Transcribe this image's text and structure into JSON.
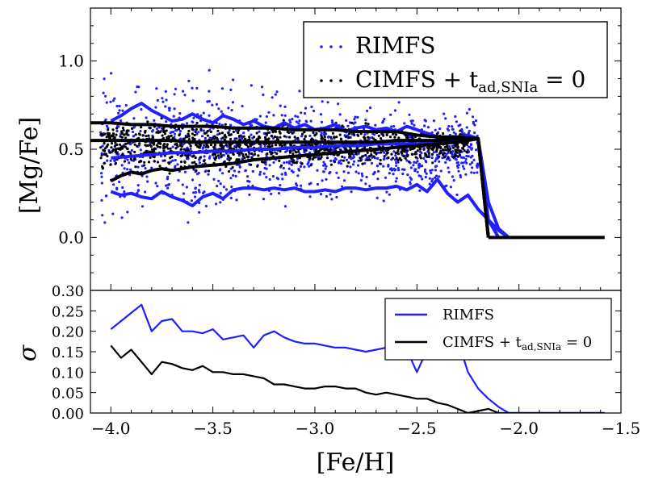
{
  "chart_data": [
    {
      "type": "scatter",
      "panel": "top",
      "ylabel": "[Mg/Fe]",
      "xlabel": "",
      "xlim": [
        -4.1,
        -1.5
      ],
      "ylim": [
        -0.3,
        1.3
      ],
      "yticks": [
        0.0,
        0.5,
        1.0
      ],
      "ytick_labels": [
        "0.0",
        "0.5",
        "1.0"
      ],
      "legend": {
        "position": "top-right",
        "entries": [
          {
            "label_main": "RIMFS",
            "label_sub": "",
            "label_tail": "",
            "color": "#1f1fff",
            "marker": "dots"
          },
          {
            "label_main": "CIMFS + t",
            "label_sub": "ad,SNIa",
            "label_tail": " = 0",
            "color": "#000000",
            "marker": "dots"
          }
        ]
      },
      "scatter_clouds": [
        {
          "name": "RIMFS",
          "color": "#1f1fff",
          "n_points": 1200,
          "x_range": [
            -4.05,
            -2.2
          ],
          "y_center": 0.5,
          "y_spread": 0.32
        },
        {
          "name": "CIMFS + t_ad,SNIa = 0",
          "color": "#000000",
          "n_points": 1100,
          "x_range": [
            -4.05,
            -2.25
          ],
          "y_center": 0.52,
          "y_spread": 0.12
        }
      ],
      "series": [
        {
          "name": "RIMFS upper",
          "color": "#1f1fff",
          "x": [
            -4.0,
            -3.95,
            -3.9,
            -3.85,
            -3.8,
            -3.75,
            -3.7,
            -3.65,
            -3.6,
            -3.55,
            -3.5,
            -3.45,
            -3.4,
            -3.35,
            -3.3,
            -3.25,
            -3.2,
            -3.15,
            -3.1,
            -3.05,
            -3.0,
            -2.95,
            -2.9,
            -2.85,
            -2.8,
            -2.75,
            -2.7,
            -2.65,
            -2.6,
            -2.55,
            -2.5,
            -2.45,
            -2.4,
            -2.35,
            -2.3,
            -2.25,
            -2.2,
            -2.15,
            -2.1,
            -2.05
          ],
          "y": [
            0.66,
            0.69,
            0.73,
            0.76,
            0.72,
            0.69,
            0.66,
            0.67,
            0.7,
            0.67,
            0.65,
            0.69,
            0.67,
            0.64,
            0.66,
            0.63,
            0.62,
            0.65,
            0.62,
            0.64,
            0.61,
            0.62,
            0.64,
            0.6,
            0.62,
            0.63,
            0.61,
            0.62,
            0.6,
            0.63,
            0.61,
            0.59,
            0.57,
            0.56,
            0.57,
            0.58,
            0.56,
            0.2,
            0.05,
            0.0
          ]
        },
        {
          "name": "RIMFS mean",
          "color": "#1f1fff",
          "x": [
            -4.0,
            -3.9,
            -3.8,
            -3.7,
            -3.6,
            -3.5,
            -3.4,
            -3.3,
            -3.2,
            -3.1,
            -3.0,
            -2.9,
            -2.8,
            -2.7,
            -2.6,
            -2.5,
            -2.4,
            -2.3,
            -2.2,
            -2.15,
            -2.1
          ],
          "y": [
            0.45,
            0.46,
            0.47,
            0.48,
            0.48,
            0.49,
            0.49,
            0.5,
            0.5,
            0.51,
            0.51,
            0.52,
            0.52,
            0.53,
            0.53,
            0.53,
            0.54,
            0.55,
            0.56,
            0.1,
            0.0
          ]
        },
        {
          "name": "RIMFS lower",
          "color": "#1f1fff",
          "x": [
            -4.0,
            -3.95,
            -3.9,
            -3.85,
            -3.8,
            -3.75,
            -3.7,
            -3.65,
            -3.6,
            -3.55,
            -3.5,
            -3.45,
            -3.4,
            -3.35,
            -3.3,
            -3.25,
            -3.2,
            -3.15,
            -3.1,
            -3.05,
            -3.0,
            -2.95,
            -2.9,
            -2.85,
            -2.8,
            -2.75,
            -2.7,
            -2.65,
            -2.6,
            -2.55,
            -2.5,
            -2.45,
            -2.4,
            -2.35,
            -2.3,
            -2.25,
            -2.2,
            -2.15,
            -2.1,
            -2.05
          ],
          "y": [
            0.26,
            0.24,
            0.25,
            0.23,
            0.22,
            0.26,
            0.23,
            0.21,
            0.18,
            0.23,
            0.25,
            0.22,
            0.27,
            0.28,
            0.28,
            0.27,
            0.28,
            0.27,
            0.28,
            0.26,
            0.26,
            0.27,
            0.26,
            0.28,
            0.28,
            0.27,
            0.28,
            0.28,
            0.29,
            0.27,
            0.3,
            0.26,
            0.33,
            0.25,
            0.2,
            0.24,
            0.16,
            0.1,
            0.04,
            0.0
          ]
        },
        {
          "name": "CIMFS upper",
          "color": "#000000",
          "x": [
            -4.1,
            -4.0,
            -3.9,
            -3.8,
            -3.7,
            -3.6,
            -3.5,
            -3.4,
            -3.3,
            -3.2,
            -3.1,
            -3.0,
            -2.9,
            -2.8,
            -2.7,
            -2.6,
            -2.5,
            -2.4,
            -2.3,
            -2.2,
            -2.15
          ],
          "y": [
            0.65,
            0.65,
            0.64,
            0.64,
            0.63,
            0.63,
            0.63,
            0.62,
            0.62,
            0.62,
            0.61,
            0.61,
            0.61,
            0.6,
            0.6,
            0.6,
            0.58,
            0.57,
            0.57,
            0.56,
            0.0
          ]
        },
        {
          "name": "CIMFS mean",
          "color": "#000000",
          "x": [
            -4.1,
            -4.0,
            -3.9,
            -3.8,
            -3.7,
            -3.6,
            -3.5,
            -3.4,
            -3.3,
            -3.2,
            -3.1,
            -3.0,
            -2.9,
            -2.8,
            -2.7,
            -2.6,
            -2.5,
            -2.4,
            -2.3,
            -2.2,
            -2.15
          ],
          "y": [
            0.55,
            0.55,
            0.55,
            0.55,
            0.55,
            0.54,
            0.54,
            0.54,
            0.54,
            0.54,
            0.54,
            0.54,
            0.54,
            0.54,
            0.54,
            0.55,
            0.55,
            0.55,
            0.56,
            0.56,
            0.0
          ]
        },
        {
          "name": "CIMFS lower",
          "color": "#000000",
          "x": [
            -4.0,
            -3.95,
            -3.9,
            -3.85,
            -3.8,
            -3.75,
            -3.7,
            -3.6,
            -3.5,
            -3.4,
            -3.3,
            -3.2,
            -3.1,
            -3.0,
            -2.9,
            -2.8,
            -2.7,
            -2.6,
            -2.5,
            -2.4,
            -2.3,
            -2.2,
            -2.15
          ],
          "y": [
            0.32,
            0.35,
            0.37,
            0.36,
            0.38,
            0.39,
            0.38,
            0.4,
            0.41,
            0.42,
            0.44,
            0.45,
            0.46,
            0.47,
            0.48,
            0.49,
            0.5,
            0.51,
            0.52,
            0.53,
            0.54,
            0.56,
            0.0
          ]
        },
        {
          "name": "floor",
          "color": "#000000",
          "x": [
            -2.15,
            -2.1,
            -2.0,
            -1.9,
            -1.8,
            -1.7,
            -1.6,
            -1.58
          ],
          "y": [
            0.0,
            0.0,
            0.0,
            0.0,
            0.0,
            0.0,
            0.0,
            0.0
          ]
        }
      ]
    },
    {
      "type": "line",
      "panel": "bottom",
      "xlabel": "[Fe/H]",
      "ylabel": "σ",
      "xlim": [
        -4.1,
        -1.5
      ],
      "ylim": [
        0.0,
        0.3
      ],
      "xticks": [
        -4.0,
        -3.5,
        -3.0,
        -2.5,
        -2.0,
        -1.5
      ],
      "xtick_labels": [
        "−4.0",
        "−3.5",
        "−3.0",
        "−2.5",
        "−2.0",
        "−1.5"
      ],
      "yticks": [
        0.0,
        0.05,
        0.1,
        0.15,
        0.2,
        0.25,
        0.3
      ],
      "ytick_labels": [
        "0.00",
        "0.05",
        "0.10",
        "0.15",
        "0.20",
        "0.25",
        "0.30"
      ],
      "legend": {
        "position": "top-right",
        "entries": [
          {
            "label_main": "RIMFS",
            "label_sub": "",
            "label_tail": "",
            "color": "#1f1fff"
          },
          {
            "label_main": "CIMFS + t",
            "label_sub": "ad,SNIa",
            "label_tail": " = 0",
            "color": "#000000"
          }
        ]
      },
      "series": [
        {
          "name": "RIMFS",
          "color": "#1f1fff",
          "x": [
            -4.0,
            -3.95,
            -3.9,
            -3.85,
            -3.8,
            -3.75,
            -3.7,
            -3.65,
            -3.6,
            -3.55,
            -3.5,
            -3.45,
            -3.4,
            -3.35,
            -3.3,
            -3.25,
            -3.2,
            -3.15,
            -3.1,
            -3.05,
            -3.0,
            -2.95,
            -2.9,
            -2.85,
            -2.8,
            -2.75,
            -2.7,
            -2.65,
            -2.6,
            -2.55,
            -2.5,
            -2.45,
            -2.4,
            -2.35,
            -2.3,
            -2.25,
            -2.2,
            -2.15,
            -2.1,
            -2.05,
            -2.0,
            -1.9,
            -1.8,
            -1.7,
            -1.6,
            -1.58
          ],
          "y": [
            0.205,
            0.225,
            0.245,
            0.265,
            0.2,
            0.225,
            0.23,
            0.2,
            0.2,
            0.195,
            0.205,
            0.18,
            0.185,
            0.19,
            0.16,
            0.19,
            0.2,
            0.185,
            0.175,
            0.17,
            0.17,
            0.165,
            0.16,
            0.16,
            0.155,
            0.15,
            0.155,
            0.16,
            0.17,
            0.155,
            0.1,
            0.155,
            0.14,
            0.17,
            0.18,
            0.1,
            0.06,
            0.035,
            0.015,
            0.0,
            0.0,
            0.0,
            0.0,
            0.0,
            0.0,
            0.0
          ]
        },
        {
          "name": "CIMFS + t_ad,SNIa = 0",
          "color": "#000000",
          "x": [
            -4.0,
            -3.95,
            -3.9,
            -3.85,
            -3.8,
            -3.75,
            -3.7,
            -3.65,
            -3.6,
            -3.55,
            -3.5,
            -3.45,
            -3.4,
            -3.35,
            -3.3,
            -3.25,
            -3.2,
            -3.15,
            -3.1,
            -3.05,
            -3.0,
            -2.95,
            -2.9,
            -2.85,
            -2.8,
            -2.75,
            -2.7,
            -2.65,
            -2.6,
            -2.55,
            -2.5,
            -2.45,
            -2.4,
            -2.35,
            -2.3,
            -2.25,
            -2.2,
            -2.15,
            -2.1,
            -2.0,
            -1.9,
            -1.8,
            -1.7,
            -1.6,
            -1.58
          ],
          "y": [
            0.165,
            0.135,
            0.155,
            0.125,
            0.095,
            0.125,
            0.12,
            0.11,
            0.105,
            0.115,
            0.1,
            0.1,
            0.095,
            0.095,
            0.09,
            0.085,
            0.07,
            0.07,
            0.065,
            0.06,
            0.06,
            0.065,
            0.065,
            0.06,
            0.06,
            0.05,
            0.045,
            0.05,
            0.045,
            0.04,
            0.035,
            0.035,
            0.025,
            0.02,
            0.01,
            0.0,
            0.005,
            0.01,
            0.0,
            0.0,
            0.0,
            0.0,
            0.0,
            0.0,
            0.0
          ]
        }
      ]
    }
  ]
}
